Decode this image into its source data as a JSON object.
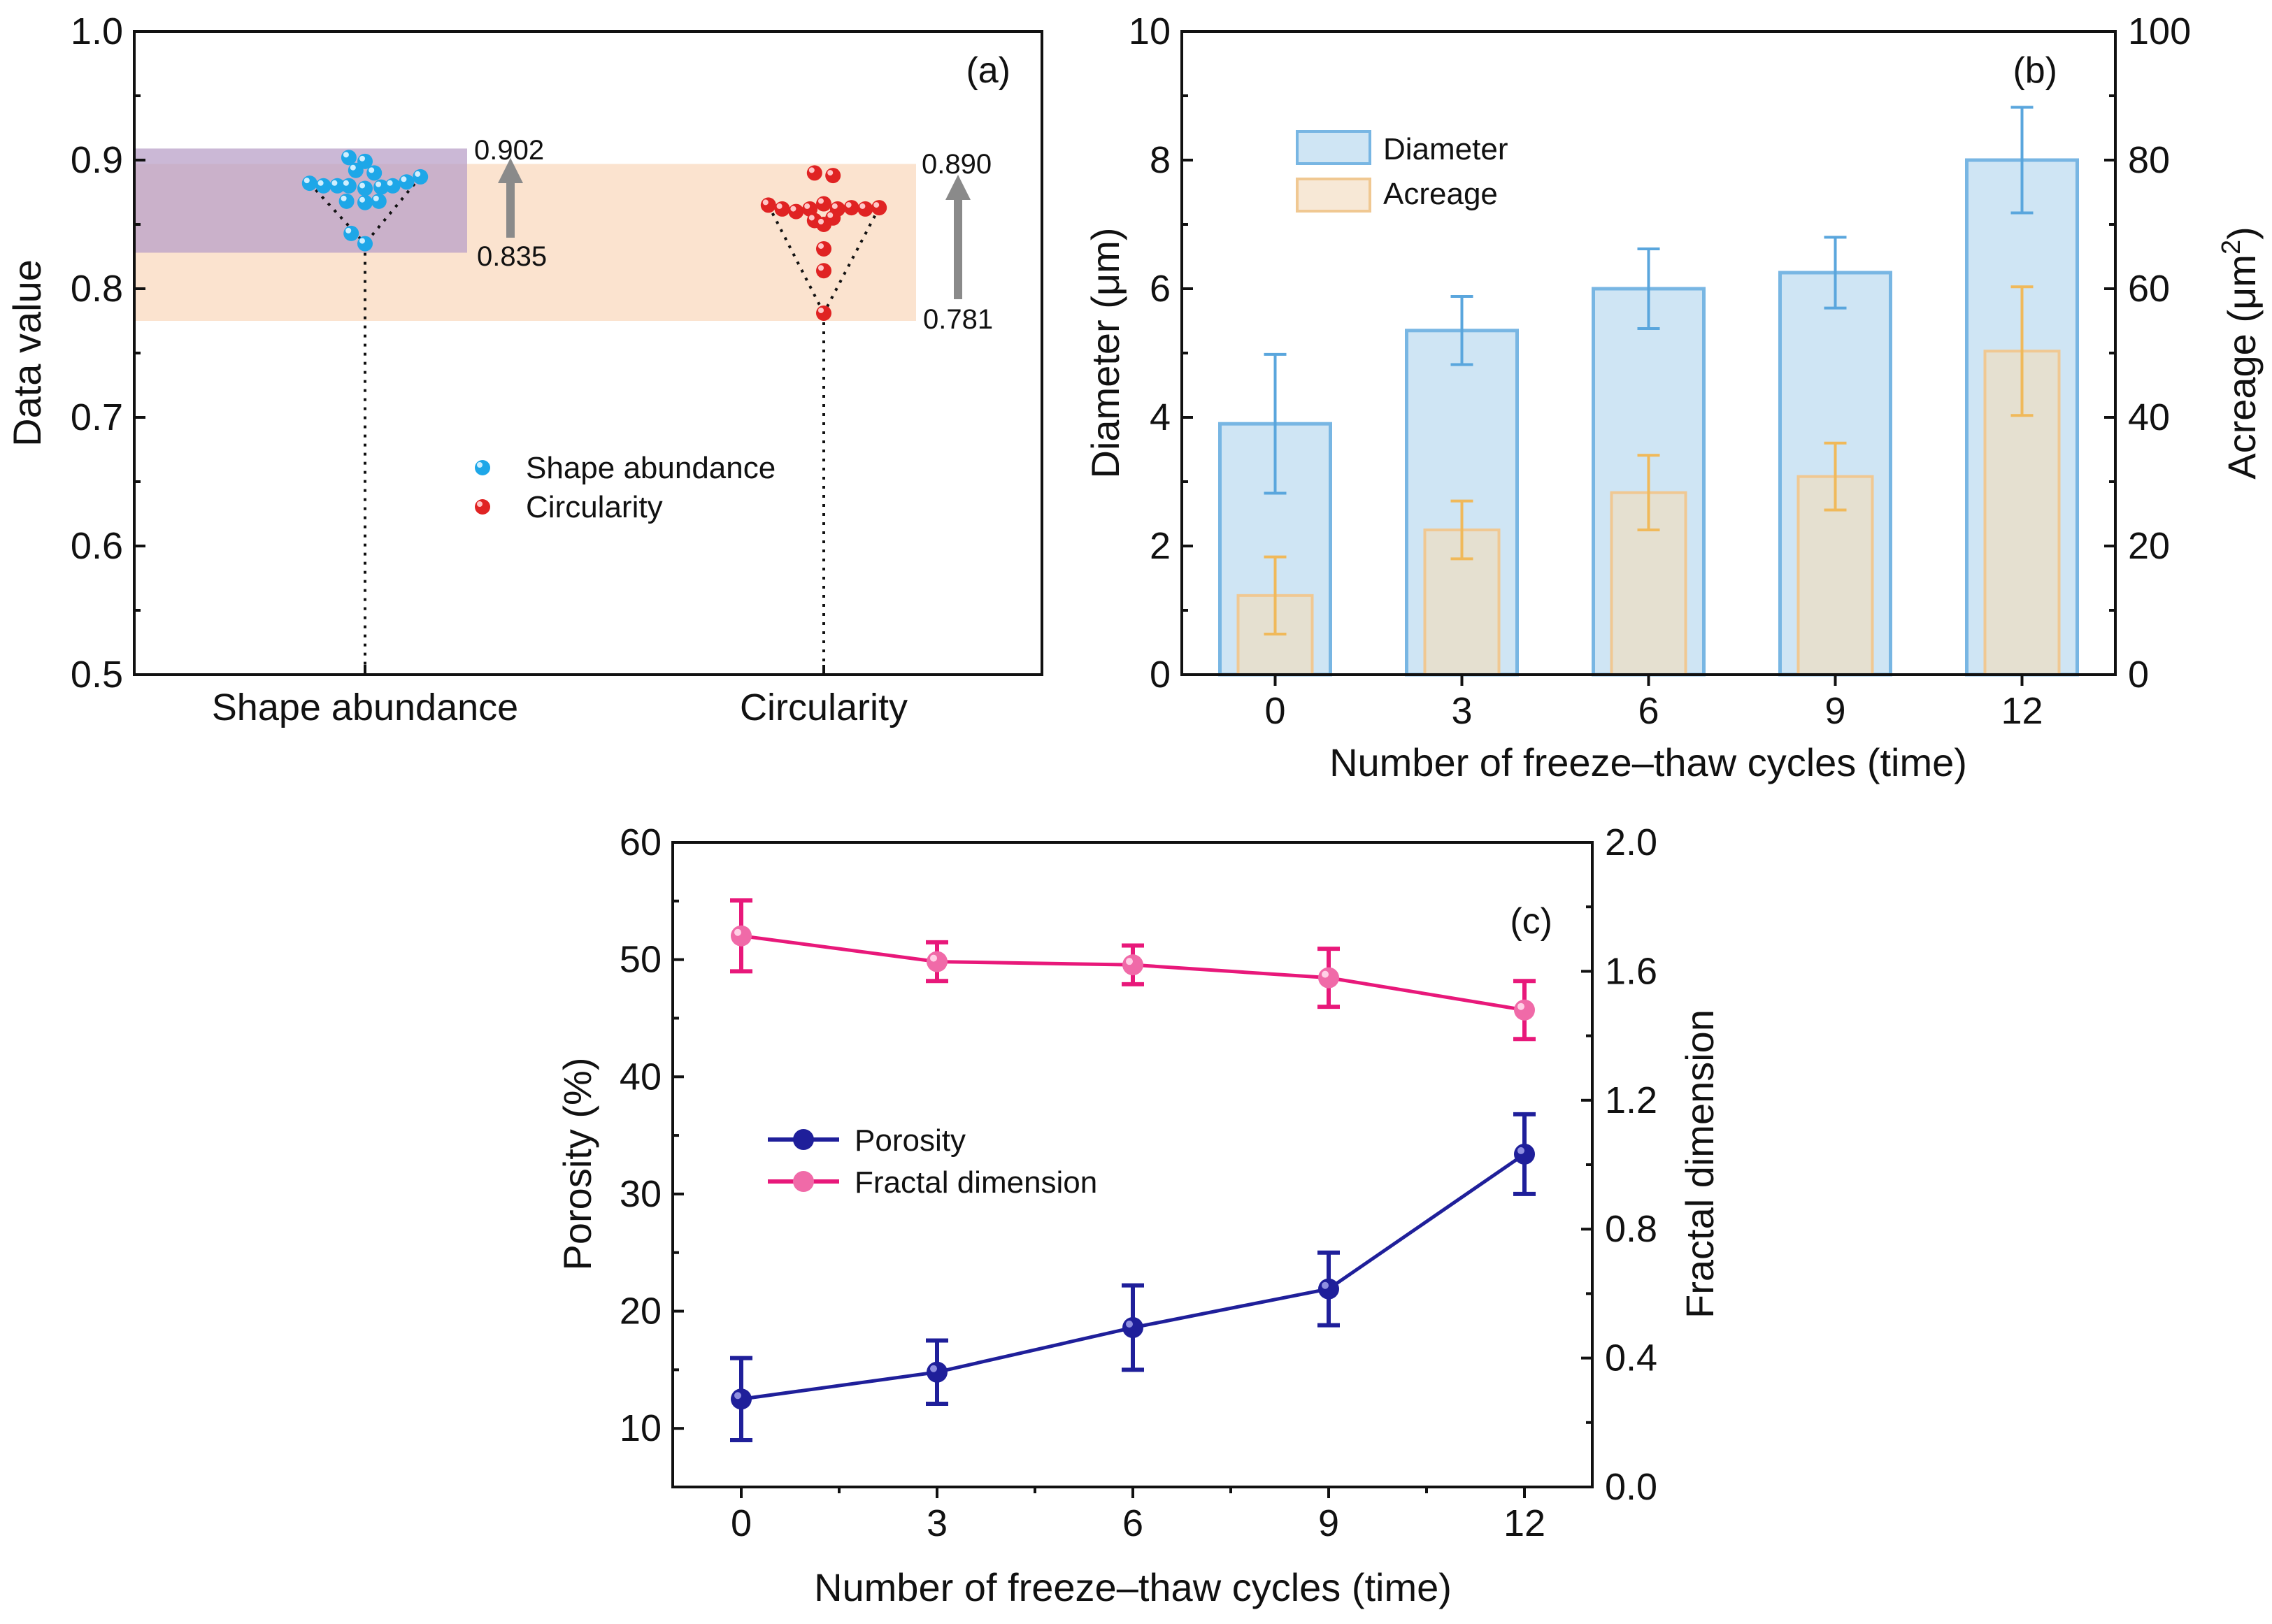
{
  "chart_data": [
    {
      "panel": "(a)",
      "type": "scatter",
      "ylabel": "Data value",
      "ylim": [
        0.5,
        1.0
      ],
      "yticks": [
        "0.5",
        "0.6",
        "0.7",
        "0.8",
        "0.9",
        "1.0"
      ],
      "categories": [
        "Shape abundance",
        "Circularity"
      ],
      "series": [
        {
          "name": "Shape abundance",
          "color": "#1ea7e8",
          "points": [
            {
              "dx": -0.12,
              "y": 0.882
            },
            {
              "dx": -0.09,
              "y": 0.88
            },
            {
              "dx": -0.06,
              "y": 0.88
            },
            {
              "dx": -0.035,
              "y": 0.88
            },
            {
              "dx": 0.0,
              "y": 0.878
            },
            {
              "dx": 0.035,
              "y": 0.879
            },
            {
              "dx": 0.06,
              "y": 0.88
            },
            {
              "dx": 0.09,
              "y": 0.883
            },
            {
              "dx": 0.12,
              "y": 0.887
            },
            {
              "dx": -0.035,
              "y": 0.902
            },
            {
              "dx": 0.0,
              "y": 0.899
            },
            {
              "dx": -0.02,
              "y": 0.892
            },
            {
              "dx": 0.02,
              "y": 0.89
            },
            {
              "dx": -0.04,
              "y": 0.868
            },
            {
              "dx": 0.0,
              "y": 0.867
            },
            {
              "dx": 0.03,
              "y": 0.868
            },
            {
              "dx": -0.03,
              "y": 0.843
            },
            {
              "dx": 0.0,
              "y": 0.835
            }
          ],
          "min": "0.835",
          "max": "0.902"
        },
        {
          "name": "Circularity",
          "color": "#e02323",
          "points": [
            {
              "dx": -0.12,
              "y": 0.865
            },
            {
              "dx": -0.09,
              "y": 0.862
            },
            {
              "dx": -0.06,
              "y": 0.86
            },
            {
              "dx": -0.03,
              "y": 0.862
            },
            {
              "dx": 0.0,
              "y": 0.866
            },
            {
              "dx": 0.03,
              "y": 0.862
            },
            {
              "dx": 0.06,
              "y": 0.863
            },
            {
              "dx": 0.09,
              "y": 0.862
            },
            {
              "dx": 0.12,
              "y": 0.863
            },
            {
              "dx": -0.02,
              "y": 0.89
            },
            {
              "dx": 0.02,
              "y": 0.888
            },
            {
              "dx": -0.02,
              "y": 0.853
            },
            {
              "dx": 0.0,
              "y": 0.85
            },
            {
              "dx": 0.02,
              "y": 0.855
            },
            {
              "dx": 0.0,
              "y": 0.831
            },
            {
              "dx": 0.0,
              "y": 0.814
            },
            {
              "dx": 0.0,
              "y": 0.781
            }
          ],
          "min": "0.781",
          "max": "0.890"
        }
      ],
      "bands": [
        {
          "category": 0,
          "from": 0.828,
          "to": 0.909,
          "color": "#b9a0c8"
        },
        {
          "category_span": [
            0,
            1
          ],
          "from": 0.775,
          "to": 0.897,
          "color": "#fbe3cf"
        }
      ]
    },
    {
      "panel": "(b)",
      "type": "bar",
      "xlabel": "Number of freeze–thaw cycles (time)",
      "ylabel": "Diameter (μm)",
      "ylabel2_main": "Acreage (μm",
      "ylabel2_sup": "2",
      "ylabel2_end": ")",
      "categories": [
        "0",
        "3",
        "6",
        "9",
        "12"
      ],
      "ylim": [
        0,
        10
      ],
      "y2lim": [
        0,
        100
      ],
      "yticks": [
        "0",
        "2",
        "4",
        "6",
        "8",
        "10"
      ],
      "y2ticks": [
        "0",
        "20",
        "40",
        "60",
        "80",
        "100"
      ],
      "series": [
        {
          "name": "Diameter",
          "axis": "left",
          "values": [
            3.9,
            5.35,
            6.0,
            6.25,
            8.0
          ],
          "err": [
            1.08,
            0.53,
            0.62,
            0.55,
            0.82
          ],
          "fill": "#cfe5f4",
          "stroke": "#78b6e3"
        },
        {
          "name": "Acreage",
          "axis": "right",
          "values": [
            12.3,
            22.5,
            28.3,
            30.8,
            50.3
          ],
          "err": [
            6.0,
            4.5,
            5.8,
            5.2,
            10.0
          ],
          "fill": "#e9dfc9",
          "stroke": "#f0c892"
        }
      ]
    },
    {
      "panel": "(c)",
      "type": "line",
      "xlabel": "Number of freeze–thaw cycles (time)",
      "ylabel": "Porosity (%)",
      "ylabel2": "Fractal dimension",
      "categories": [
        "0",
        "3",
        "6",
        "9",
        "12"
      ],
      "ylim": [
        5,
        60
      ],
      "y2lim": [
        0.0,
        2.0
      ],
      "yticks": [
        "10",
        "20",
        "30",
        "40",
        "50",
        "60"
      ],
      "y2ticks": [
        "0.0",
        "0.4",
        "0.8",
        "1.2",
        "1.6",
        "2.0"
      ],
      "series": [
        {
          "name": "Porosity",
          "axis": "left",
          "color": "#1f1f9a",
          "values": [
            12.5,
            14.8,
            18.6,
            21.9,
            33.4
          ],
          "err": [
            3.5,
            2.7,
            3.6,
            3.1,
            3.4
          ]
        },
        {
          "name": "Fractal dimension",
          "axis": "right",
          "color": "#e8187a",
          "values": [
            1.71,
            1.63,
            1.62,
            1.58,
            1.48
          ],
          "err": [
            0.11,
            0.06,
            0.06,
            0.09,
            0.09
          ]
        }
      ]
    }
  ],
  "labels": {
    "a_tag": "(a)",
    "b_tag": "(b)",
    "c_tag": "(c)",
    "a_ylabel": "Data value",
    "a_cat1": "Shape abundance",
    "a_cat2": "Circularity",
    "a_legend1": "Shape abundance",
    "a_legend2": "Circularity",
    "a_max1": "0.902",
    "a_min1": "0.835",
    "a_max2": "0.890",
    "a_min2": "0.781",
    "b_xlabel": "Number of freeze–thaw cycles (time)",
    "b_ylabel": "Diameter (μm)",
    "b_legend1": "Diameter",
    "b_legend2": "Acreage",
    "c_xlabel": "Number of freeze–thaw cycles (time)",
    "c_ylabel": "Porosity (%)",
    "c_ylabel2": "Fractal dimension",
    "c_legend1": "Porosity",
    "c_legend2": "Fractal dimension"
  }
}
